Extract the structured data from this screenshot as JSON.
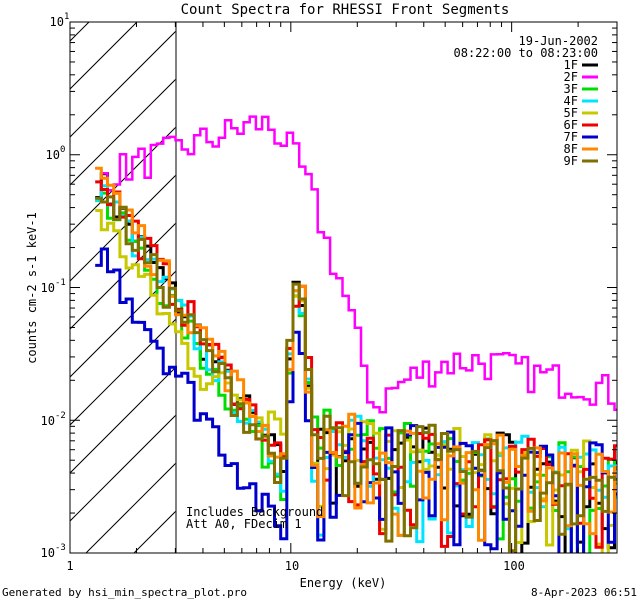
{
  "chart_data": {
    "type": "line",
    "title": "Count Spectra for RHESSI Front Segments",
    "xlabel": "Energy (keV)",
    "ylabel": "counts cm-2 s-1 keV-1",
    "xscale": "log",
    "yscale": "log",
    "xlim": [
      1,
      300
    ],
    "ylim": [
      0.001,
      10
    ],
    "x_tick_labels": [
      "1",
      "10",
      "100"
    ],
    "y_tick_labels": [
      "10",
      "10",
      "10",
      "10",
      "10"
    ],
    "y_tick_exponents": [
      "1",
      "0",
      "-1",
      "-2",
      "-3"
    ],
    "date": "19-Jun-2002",
    "time_range": "08:22:00 to 08:23:00",
    "annotations": [
      "Includes Background",
      "Att A0, FDecim 1"
    ],
    "hatched_region_max_keV": 3,
    "footer_left": "Generated by hsi_min_spectra_plot.pro",
    "footer_right": "8-Apr-2023 06:51",
    "series": [
      {
        "name": "1F",
        "color": "#000000"
      },
      {
        "name": "2F",
        "color": "#ff00ff"
      },
      {
        "name": "3F",
        "color": "#00dd00"
      },
      {
        "name": "4F",
        "color": "#00e5ff"
      },
      {
        "name": "5F",
        "color": "#c8c800"
      },
      {
        "name": "6F",
        "color": "#ee0000"
      },
      {
        "name": "7F",
        "color": "#0000cc"
      },
      {
        "name": "8F",
        "color": "#ff8800"
      },
      {
        "name": "9F",
        "color": "#807000"
      }
    ]
  }
}
